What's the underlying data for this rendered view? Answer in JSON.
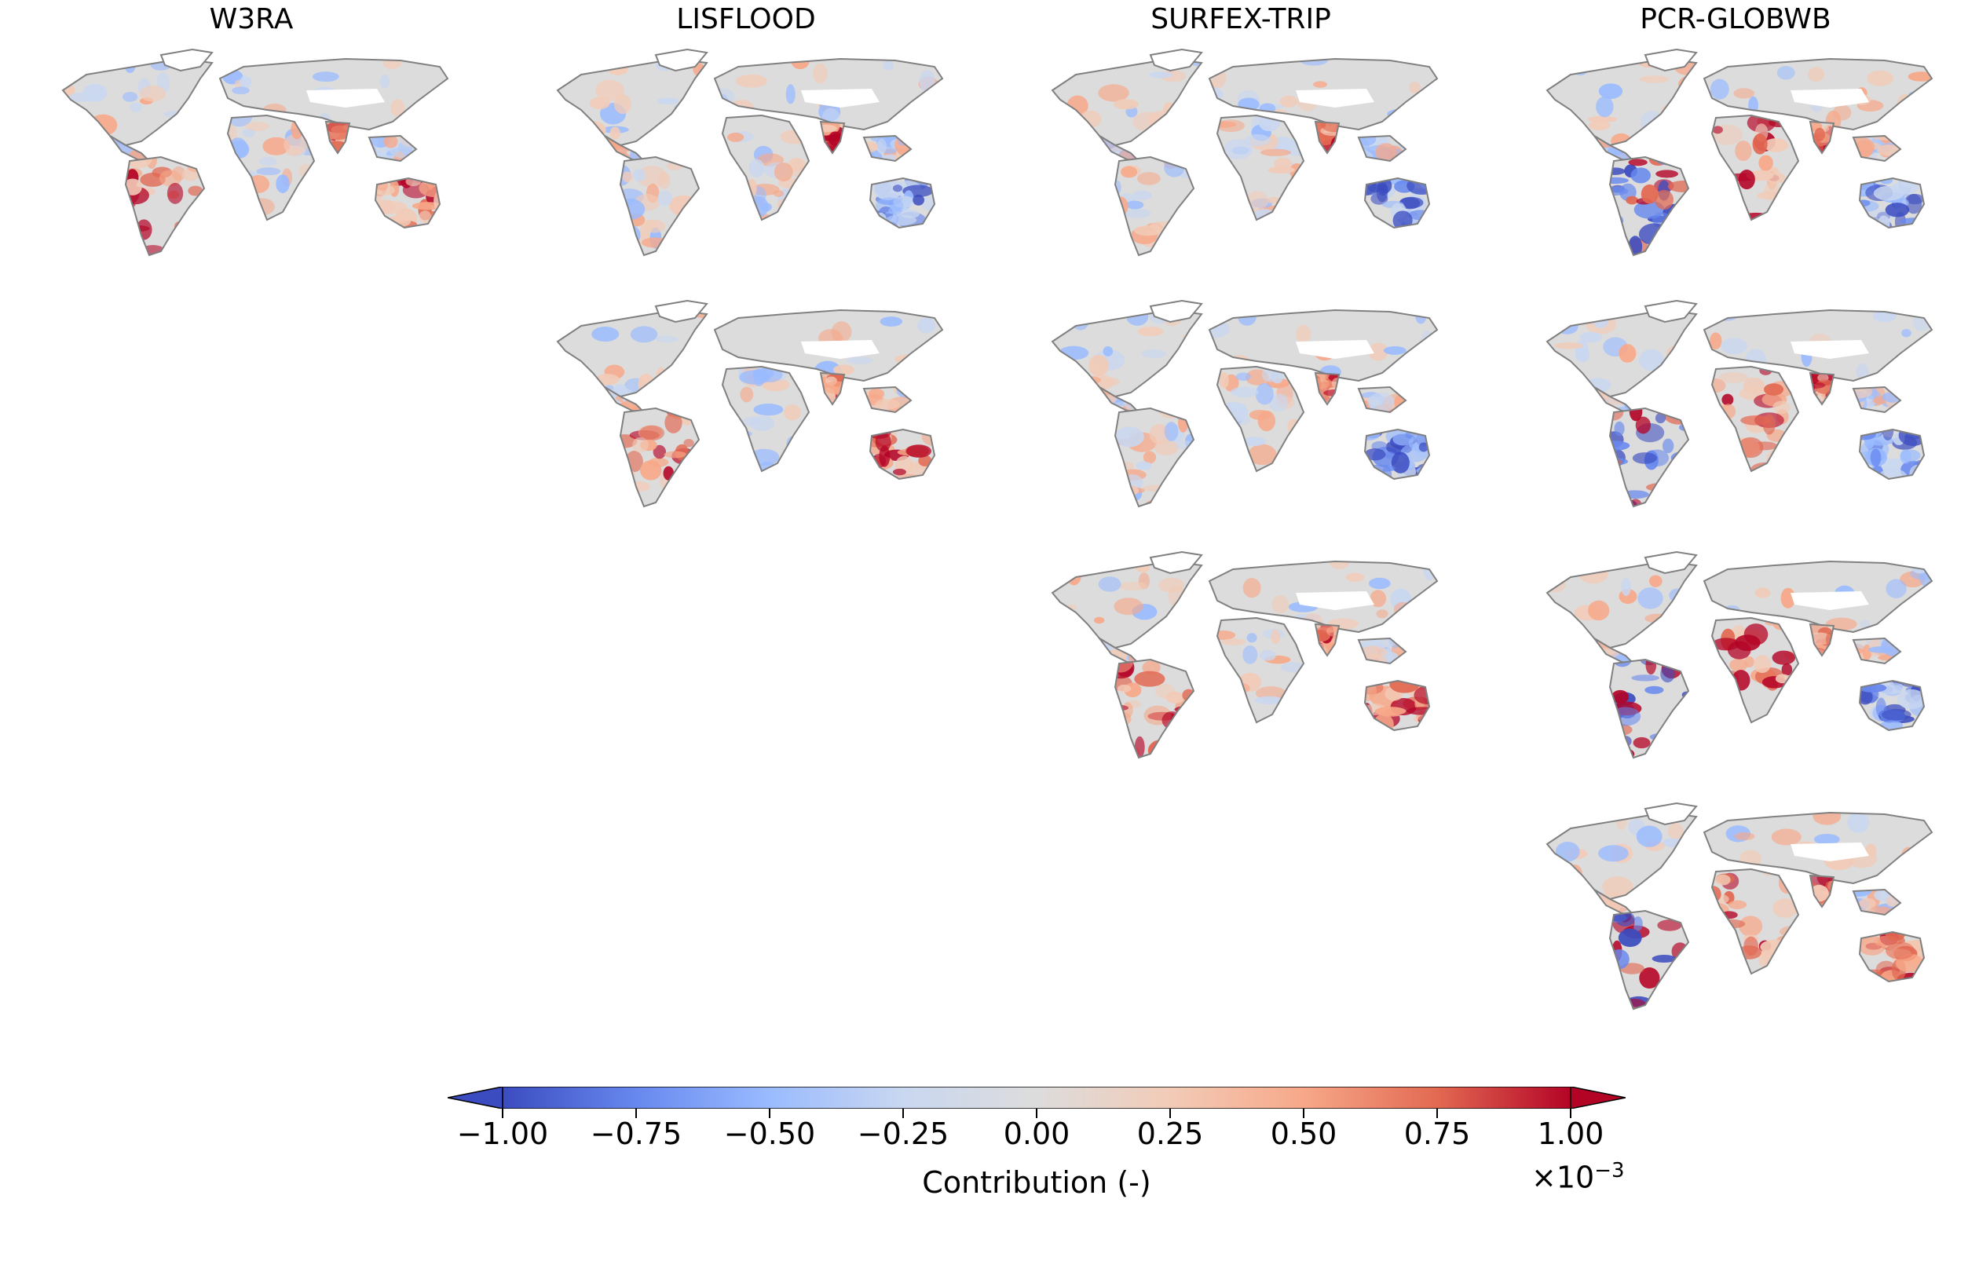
{
  "columns": [
    {
      "title": "W3RA"
    },
    {
      "title": "LISFLOOD"
    },
    {
      "title": "SURFEX-TRIP"
    },
    {
      "title": "PCR-GLOBWB"
    }
  ],
  "panels": [
    {
      "column": 0,
      "row": 0,
      "sa": "red",
      "af": "mixed",
      "au": "red"
    },
    {
      "column": 1,
      "row": 0,
      "sa": "mixed",
      "af": "mixed",
      "au": "blue"
    },
    {
      "column": 1,
      "row": 1,
      "sa": "red",
      "af": "mixed",
      "au": "red"
    },
    {
      "column": 2,
      "row": 0,
      "sa": "mixed",
      "af": "mixed",
      "au": "blue"
    },
    {
      "column": 2,
      "row": 1,
      "sa": "mixed",
      "af": "mixed",
      "au": "blue"
    },
    {
      "column": 2,
      "row": 2,
      "sa": "red",
      "af": "mixed",
      "au": "red"
    },
    {
      "column": 3,
      "row": 0,
      "sa": "strong",
      "af": "red",
      "au": "blue"
    },
    {
      "column": 3,
      "row": 1,
      "sa": "strong",
      "af": "red",
      "au": "blue"
    },
    {
      "column": 3,
      "row": 2,
      "sa": "strong",
      "af": "red",
      "au": "blue"
    },
    {
      "column": 3,
      "row": 3,
      "sa": "strong",
      "af": "red",
      "au": "red"
    }
  ],
  "colorbar": {
    "label": "Contribution (-)",
    "multiplier": "×10",
    "multiplier_exp": "−3",
    "ticks": [
      "−1.00",
      "−0.75",
      "−0.50",
      "−0.25",
      "0.00",
      "0.25",
      "0.50",
      "0.75",
      "1.00"
    ],
    "min": -1.0,
    "max": 1.0,
    "colors": [
      "#3b4cc0",
      "#6788ee",
      "#9abbff",
      "#c9d7f0",
      "#dddcdc",
      "#f2cbb7",
      "#f7a889",
      "#e26952",
      "#b40426"
    ]
  }
}
